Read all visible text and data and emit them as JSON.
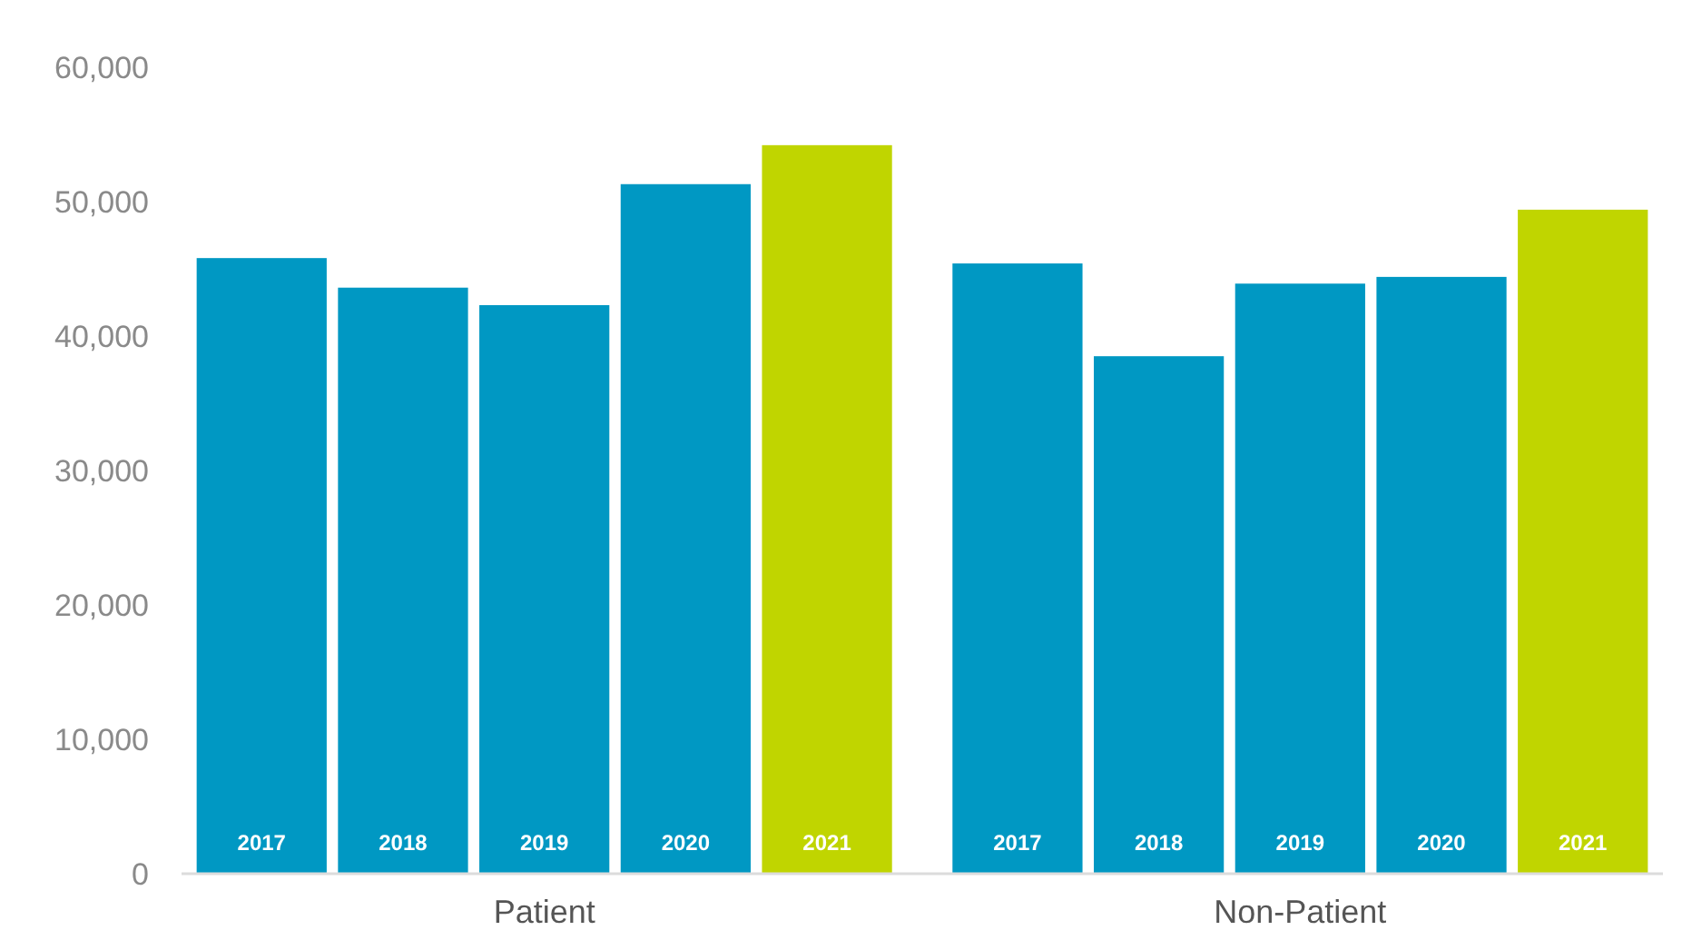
{
  "chart_data": {
    "type": "bar",
    "categories": [
      "Patient",
      "Non-Patient"
    ],
    "series": [
      {
        "name": "2017",
        "color": "#0098c3",
        "values": [
          45800,
          45400
        ]
      },
      {
        "name": "2018",
        "color": "#0098c3",
        "values": [
          43600,
          38500
        ]
      },
      {
        "name": "2019",
        "color": "#0098c3",
        "values": [
          42300,
          43900
        ]
      },
      {
        "name": "2020",
        "color": "#0098c3",
        "values": [
          51300,
          44400
        ]
      },
      {
        "name": "2021",
        "color": "#c0d500",
        "values": [
          54200,
          49400
        ]
      }
    ],
    "ylim": [
      0,
      60000
    ],
    "yticks": [
      {
        "value": 0,
        "label": "0"
      },
      {
        "value": 10000,
        "label": "10,000"
      },
      {
        "value": 20000,
        "label": "20,000"
      },
      {
        "value": 30000,
        "label": "30,000"
      },
      {
        "value": 40000,
        "label": "40,000"
      },
      {
        "value": 50000,
        "label": "50,000"
      },
      {
        "value": 60000,
        "label": "60,000"
      }
    ],
    "grid": false
  }
}
